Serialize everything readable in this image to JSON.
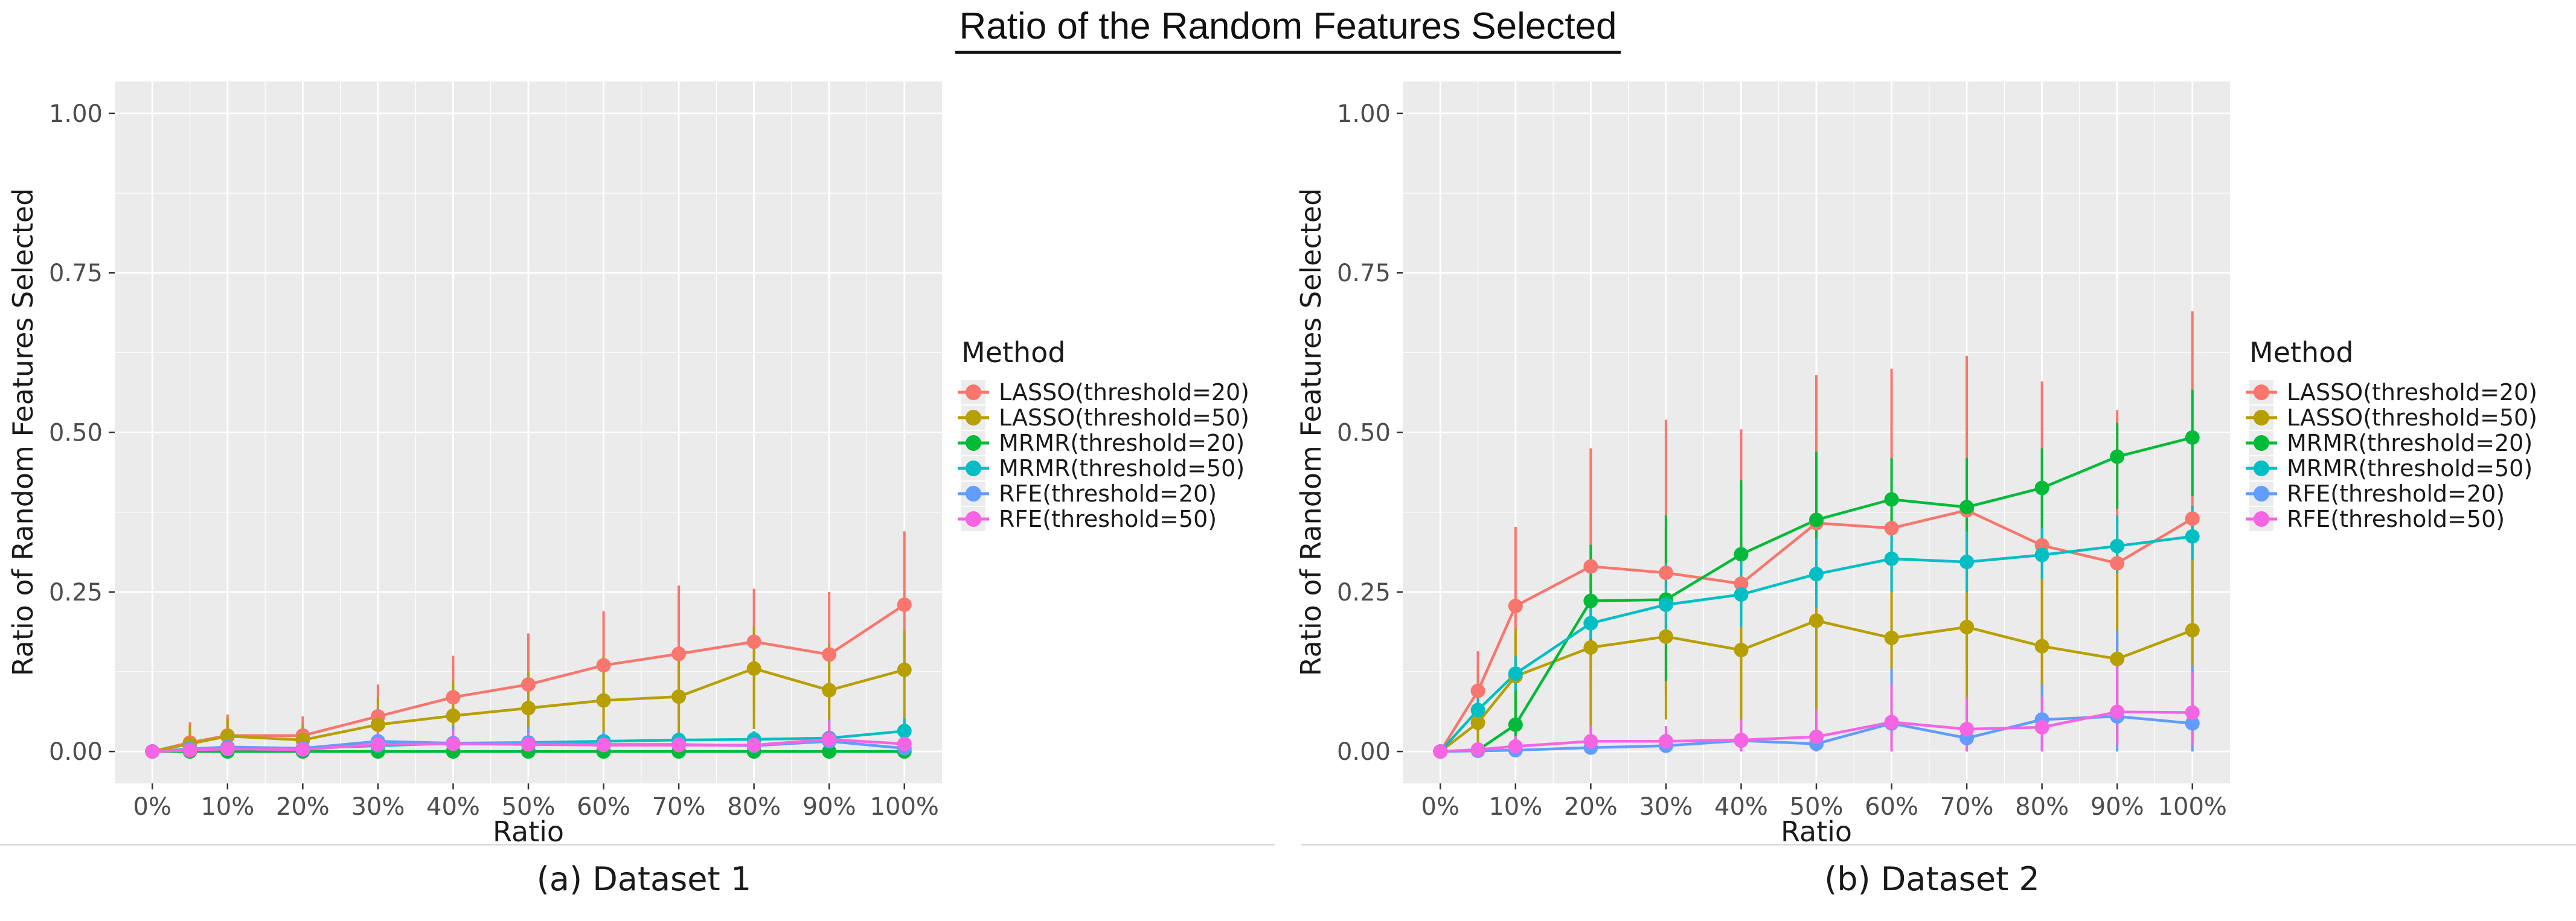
{
  "page": {
    "title": "Ratio of the Random Features Selected"
  },
  "style": {
    "panel_bg": "#EBEBEB",
    "grid_color": "#FFFFFF",
    "tick_text_color": "#4D4D4D",
    "axis_title_color": "#1a1a1a",
    "tick_mark_color": "#333333",
    "legend_key_bg": "#ECECEC",
    "divider_color": "#dcdcdc"
  },
  "chart_data": [
    {
      "type": "line",
      "title": "(a) Dataset 1",
      "xlabel": "Ratio",
      "ylabel": "Ratio of Random Features Selected",
      "legend_title": "Method",
      "legend_position": "right",
      "grid": true,
      "x_percent": [
        0,
        5,
        10,
        20,
        30,
        40,
        50,
        60,
        70,
        80,
        90,
        100
      ],
      "x_tick_values": [
        0,
        10,
        20,
        30,
        40,
        50,
        60,
        70,
        80,
        90,
        100
      ],
      "x_tick_labels": [
        "0%",
        "10%",
        "20%",
        "30%",
        "40%",
        "50%",
        "60%",
        "70%",
        "80%",
        "90%",
        "100%"
      ],
      "y_tick_values": [
        0,
        0.25,
        0.5,
        0.75,
        1
      ],
      "y_tick_labels": [
        "0.00",
        "0.25",
        "0.50",
        "0.75",
        "1.00"
      ],
      "ylim": [
        -0.05,
        1.05
      ],
      "series": [
        {
          "name": "LASSO(threshold=20)",
          "color": "#F8766D",
          "values": [
            0,
            0.014,
            0.025,
            0.025,
            0.055,
            0.085,
            0.105,
            0.135,
            0.153,
            0.172,
            0.152,
            0.23
          ],
          "err_lo": [
            0,
            0,
            0,
            0,
            0.005,
            0.015,
            0.025,
            0.045,
            0.05,
            0.065,
            0.05,
            0.11
          ],
          "err_hi": [
            0,
            0.046,
            0.058,
            0.055,
            0.105,
            0.15,
            0.185,
            0.22,
            0.26,
            0.255,
            0.25,
            0.345
          ]
        },
        {
          "name": "LASSO(threshold=50)",
          "color": "#B79F00",
          "values": [
            0,
            0.012,
            0.024,
            0.018,
            0.042,
            0.056,
            0.068,
            0.08,
            0.086,
            0.13,
            0.096,
            0.128
          ],
          "err_lo": [
            0,
            0,
            0,
            0,
            0,
            0.005,
            0.01,
            0.015,
            0.02,
            0.035,
            0.025,
            0.035
          ],
          "err_hi": [
            0,
            0.04,
            0.052,
            0.042,
            0.085,
            0.11,
            0.125,
            0.148,
            0.155,
            0.196,
            0.168,
            0.19
          ]
        },
        {
          "name": "MRMR(threshold=20)",
          "color": "#00BA38",
          "values": [
            0,
            0,
            0,
            0,
            0,
            0,
            0,
            0,
            0,
            0,
            0,
            0
          ],
          "err_lo": [
            0,
            0,
            0,
            0,
            0,
            0,
            0,
            0,
            0,
            0,
            0,
            0
          ],
          "err_hi": [
            0,
            0,
            0,
            0,
            0,
            0,
            0,
            0,
            0,
            0,
            0,
            0
          ]
        },
        {
          "name": "MRMR(threshold=50)",
          "color": "#00BFC4",
          "values": [
            0,
            0.003,
            0.005,
            0.005,
            0.009,
            0.013,
            0.014,
            0.016,
            0.018,
            0.019,
            0.021,
            0.032
          ],
          "err_lo": [
            0,
            0,
            0,
            0,
            0,
            0.003,
            0.004,
            0.005,
            0.006,
            0.007,
            0.008,
            0.012
          ],
          "err_hi": [
            0,
            0.008,
            0.012,
            0.012,
            0.02,
            0.025,
            0.026,
            0.03,
            0.03,
            0.032,
            0.035,
            0.052
          ]
        },
        {
          "name": "RFE(threshold=20)",
          "color": "#619CFF",
          "values": [
            0,
            0.004,
            0.007,
            0.005,
            0.016,
            0.013,
            0.013,
            0.011,
            0.011,
            0.009,
            0.016,
            0.005
          ],
          "err_lo": [
            0,
            0,
            0,
            0,
            0,
            0,
            0,
            0,
            0,
            0,
            0,
            0
          ],
          "err_hi": [
            0,
            0.012,
            0.02,
            0.015,
            0.068,
            0.04,
            0.038,
            0.032,
            0.03,
            0.026,
            0.05,
            0.016
          ]
        },
        {
          "name": "RFE(threshold=50)",
          "color": "#F564E3",
          "values": [
            0,
            0.002,
            0.004,
            0.003,
            0.011,
            0.012,
            0.011,
            0.01,
            0.01,
            0.01,
            0.019,
            0.012
          ],
          "err_lo": [
            0,
            0,
            0,
            0,
            0,
            0,
            0,
            0,
            0,
            0,
            0,
            0
          ],
          "err_hi": [
            0,
            0.008,
            0.014,
            0.01,
            0.032,
            0.034,
            0.03,
            0.028,
            0.028,
            0.028,
            0.048,
            0.034
          ]
        }
      ]
    },
    {
      "type": "line",
      "title": "(b) Dataset 2",
      "xlabel": "Ratio",
      "ylabel": "Ratio of Random Features Selected",
      "legend_title": "Method",
      "legend_position": "right",
      "grid": true,
      "x_percent": [
        0,
        5,
        10,
        20,
        30,
        40,
        50,
        60,
        70,
        80,
        90,
        100
      ],
      "x_tick_values": [
        0,
        10,
        20,
        30,
        40,
        50,
        60,
        70,
        80,
        90,
        100
      ],
      "x_tick_labels": [
        "0%",
        "10%",
        "20%",
        "30%",
        "40%",
        "50%",
        "60%",
        "70%",
        "80%",
        "90%",
        "100%"
      ],
      "y_tick_values": [
        0,
        0.25,
        0.5,
        0.75,
        1
      ],
      "y_tick_labels": [
        "0.00",
        "0.25",
        "0.50",
        "0.75",
        "1.00"
      ],
      "ylim": [
        -0.05,
        1.05
      ],
      "series": [
        {
          "name": "LASSO(threshold=20)",
          "color": "#F8766D",
          "values": [
            0,
            0.095,
            0.228,
            0.29,
            0.28,
            0.263,
            0.358,
            0.35,
            0.378,
            0.323,
            0.295,
            0.365
          ],
          "err_lo": [
            0,
            0.031,
            0.104,
            0.1,
            0.09,
            0.03,
            0.13,
            0.13,
            0.14,
            0.1,
            0.07,
            0.1
          ],
          "err_hi": [
            0,
            0.157,
            0.352,
            0.475,
            0.52,
            0.505,
            0.59,
            0.6,
            0.62,
            0.58,
            0.535,
            0.69
          ]
        },
        {
          "name": "LASSO(threshold=50)",
          "color": "#B79F00",
          "values": [
            0,
            0.045,
            0.118,
            0.163,
            0.18,
            0.159,
            0.205,
            0.178,
            0.195,
            0.165,
            0.145,
            0.19
          ],
          "err_lo": [
            0,
            0,
            0.028,
            0.033,
            0.05,
            0.02,
            0.05,
            0.02,
            0.04,
            0.02,
            0.01,
            0.02
          ],
          "err_hi": [
            0,
            0.06,
            0.193,
            0.267,
            0.35,
            0.335,
            0.385,
            0.36,
            0.37,
            0.35,
            0.33,
            0.375
          ]
        },
        {
          "name": "MRMR(threshold=20)",
          "color": "#00BA38",
          "values": [
            0,
            0.002,
            0.042,
            0.236,
            0.238,
            0.309,
            0.363,
            0.395,
            0.383,
            0.413,
            0.462,
            0.492
          ],
          "err_lo": [
            0,
            0,
            0,
            0.151,
            0.11,
            0.2,
            0.26,
            0.29,
            0.3,
            0.33,
            0.38,
            0.4
          ],
          "err_hi": [
            0,
            0.004,
            0.097,
            0.324,
            0.37,
            0.425,
            0.47,
            0.46,
            0.46,
            0.475,
            0.515,
            0.567
          ]
        },
        {
          "name": "MRMR(threshold=50)",
          "color": "#00BFC4",
          "values": [
            0,
            0.065,
            0.122,
            0.201,
            0.23,
            0.246,
            0.278,
            0.302,
            0.297,
            0.308,
            0.322,
            0.337
          ],
          "err_lo": [
            0,
            0.035,
            0.096,
            0.176,
            0.17,
            0.195,
            0.225,
            0.25,
            0.25,
            0.27,
            0.28,
            0.3
          ],
          "err_hi": [
            0,
            0.095,
            0.149,
            0.226,
            0.295,
            0.3,
            0.335,
            0.355,
            0.345,
            0.35,
            0.37,
            0.385
          ]
        },
        {
          "name": "RFE(threshold=20)",
          "color": "#619CFF",
          "values": [
            0,
            0.001,
            0.002,
            0.006,
            0.009,
            0.017,
            0.012,
            0.044,
            0.021,
            0.05,
            0.055,
            0.044
          ],
          "err_lo": [
            0,
            0,
            0,
            0,
            0,
            0,
            0,
            0,
            0,
            0,
            0,
            0
          ],
          "err_hi": [
            0,
            0.003,
            0.006,
            0.018,
            0.027,
            0.05,
            0.04,
            0.13,
            0.06,
            0.105,
            0.19,
            0.135
          ]
        },
        {
          "name": "RFE(threshold=50)",
          "color": "#F564E3",
          "values": [
            0,
            0.003,
            0.008,
            0.016,
            0.016,
            0.018,
            0.023,
            0.046,
            0.035,
            0.038,
            0.062,
            0.061
          ],
          "err_lo": [
            0,
            0,
            0,
            0,
            0,
            0,
            0,
            0,
            0,
            0,
            0.01,
            0.01
          ],
          "err_hi": [
            0,
            0.009,
            0.024,
            0.04,
            0.04,
            0.05,
            0.065,
            0.105,
            0.085,
            0.085,
            0.135,
            0.125
          ]
        }
      ]
    }
  ]
}
